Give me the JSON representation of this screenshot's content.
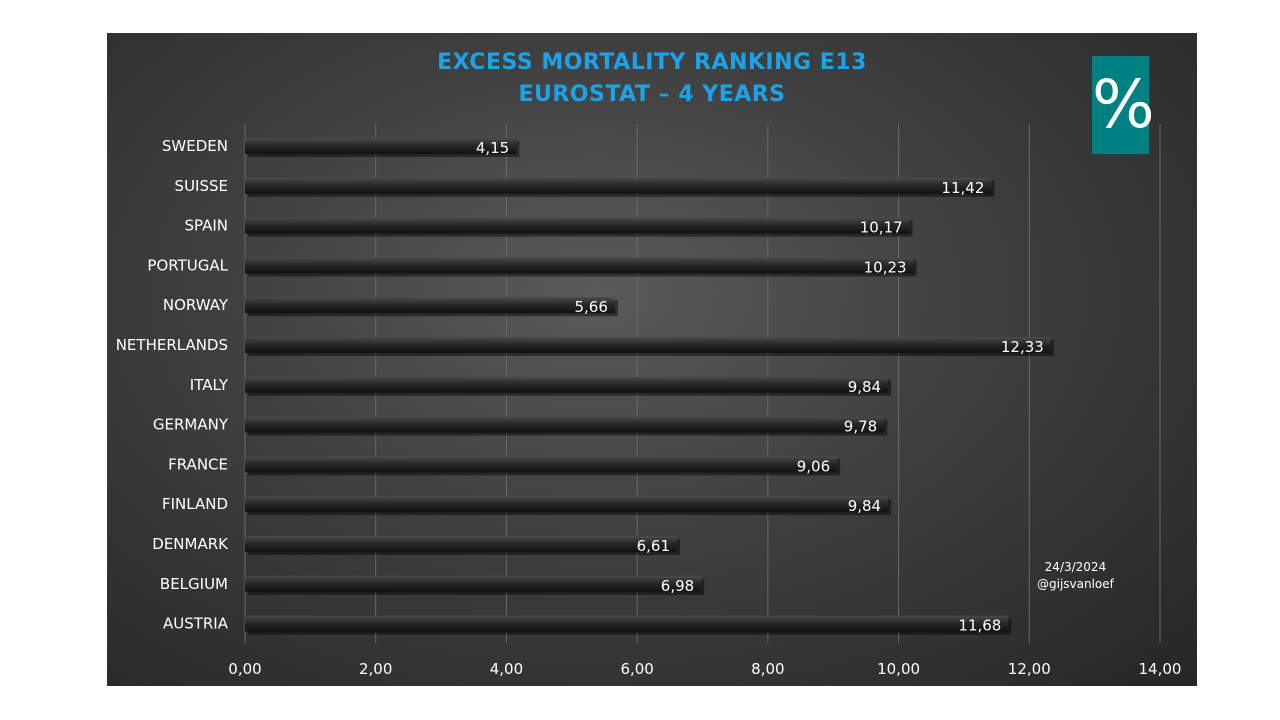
{
  "chart_data": {
    "type": "bar",
    "orientation": "horizontal",
    "title_lines": [
      "EXCESS MORTALITY RANKING E13",
      "EUROSTAT – 4 YEARS"
    ],
    "categories": [
      "SWEDEN",
      "SUISSE",
      "SPAIN",
      "PORTUGAL",
      "NORWAY",
      "NETHERLANDS",
      "ITALY",
      "GERMANY",
      "FRANCE",
      "FINLAND",
      "DENMARK",
      "BELGIUM",
      "AUSTRIA"
    ],
    "values": [
      4.15,
      11.42,
      10.17,
      10.23,
      5.66,
      12.33,
      9.84,
      9.78,
      9.06,
      9.84,
      6.61,
      6.98,
      11.68
    ],
    "value_labels": [
      "4,15",
      "11,42",
      "10,17",
      "10,23",
      "5,66",
      "12,33",
      "9,84",
      "9,78",
      "9,06",
      "9,84",
      "6,61",
      "6,98",
      "11,68"
    ],
    "xlim": [
      0,
      14
    ],
    "xticks": [
      0,
      2,
      4,
      6,
      8,
      10,
      12,
      14
    ],
    "xtick_labels": [
      "0,00",
      "2,00",
      "4,00",
      "6,00",
      "8,00",
      "10,00",
      "12,00",
      "14,00"
    ],
    "grid": "vertical",
    "legend": "none"
  },
  "badge": {
    "symbol": "%"
  },
  "stamp": {
    "date": "24/3/2024",
    "handle": "@gijsvanloef"
  },
  "colors": {
    "title": "#1aa3e8",
    "badge": "#008080",
    "bar": "#1e1e1e",
    "text": "#ffffff"
  }
}
